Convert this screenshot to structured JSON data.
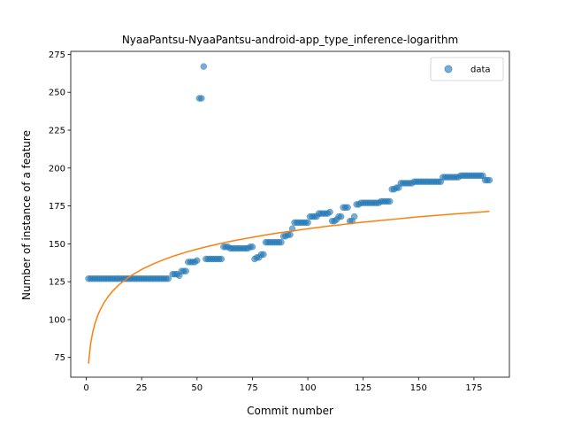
{
  "chart_data": {
    "type": "scatter",
    "title": "NyaaPantsu-NyaaPantsu-android-app_type_inference-logarithm",
    "xlabel": "Commit number",
    "ylabel": "Number of instance of a feature",
    "xlim": [
      -7,
      191
    ],
    "ylim": [
      62,
      277
    ],
    "xticks": [
      0,
      25,
      50,
      75,
      100,
      125,
      150,
      175
    ],
    "yticks": [
      75,
      100,
      125,
      150,
      175,
      200,
      225,
      250,
      275
    ],
    "legend": {
      "position": "top-right",
      "entries": [
        "data"
      ]
    },
    "grid": false,
    "series": [
      {
        "name": "data",
        "kind": "scatter",
        "color": "#1f77b4",
        "points": [
          [
            1,
            127
          ],
          [
            2,
            127
          ],
          [
            3,
            127
          ],
          [
            4,
            127
          ],
          [
            5,
            127
          ],
          [
            6,
            127
          ],
          [
            7,
            127
          ],
          [
            8,
            127
          ],
          [
            9,
            127
          ],
          [
            10,
            127
          ],
          [
            11,
            127
          ],
          [
            12,
            127
          ],
          [
            13,
            127
          ],
          [
            14,
            127
          ],
          [
            15,
            127
          ],
          [
            16,
            127
          ],
          [
            17,
            127
          ],
          [
            18,
            127
          ],
          [
            19,
            127
          ],
          [
            20,
            127
          ],
          [
            21,
            127
          ],
          [
            22,
            127
          ],
          [
            23,
            127
          ],
          [
            24,
            127
          ],
          [
            25,
            127
          ],
          [
            26,
            127
          ],
          [
            27,
            127
          ],
          [
            28,
            127
          ],
          [
            29,
            127
          ],
          [
            30,
            127
          ],
          [
            31,
            127
          ],
          [
            32,
            127
          ],
          [
            33,
            127
          ],
          [
            34,
            127
          ],
          [
            35,
            127
          ],
          [
            36,
            127
          ],
          [
            37,
            127
          ],
          [
            39,
            130
          ],
          [
            40,
            130
          ],
          [
            41,
            130
          ],
          [
            42,
            129
          ],
          [
            43,
            132
          ],
          [
            44,
            132
          ],
          [
            45,
            132
          ],
          [
            46,
            138
          ],
          [
            47,
            138
          ],
          [
            48,
            138
          ],
          [
            49,
            138
          ],
          [
            50,
            139
          ],
          [
            51,
            246
          ],
          [
            52,
            246
          ],
          [
            53,
            267
          ],
          [
            54,
            140
          ],
          [
            55,
            140
          ],
          [
            56,
            140
          ],
          [
            57,
            140
          ],
          [
            58,
            140
          ],
          [
            59,
            140
          ],
          [
            60,
            140
          ],
          [
            61,
            140
          ],
          [
            62,
            148
          ],
          [
            63,
            148
          ],
          [
            64,
            148
          ],
          [
            65,
            147
          ],
          [
            66,
            147
          ],
          [
            67,
            147
          ],
          [
            68,
            147
          ],
          [
            69,
            147
          ],
          [
            70,
            147
          ],
          [
            71,
            147
          ],
          [
            72,
            147
          ],
          [
            73,
            147
          ],
          [
            74,
            148
          ],
          [
            75,
            148
          ],
          [
            76,
            140
          ],
          [
            77,
            141
          ],
          [
            78,
            141
          ],
          [
            79,
            143
          ],
          [
            80,
            143
          ],
          [
            81,
            151
          ],
          [
            82,
            151
          ],
          [
            83,
            151
          ],
          [
            84,
            151
          ],
          [
            85,
            151
          ],
          [
            86,
            151
          ],
          [
            87,
            151
          ],
          [
            88,
            151
          ],
          [
            89,
            155
          ],
          [
            90,
            155
          ],
          [
            91,
            156
          ],
          [
            92,
            156
          ],
          [
            93,
            160
          ],
          [
            94,
            164
          ],
          [
            95,
            164
          ],
          [
            96,
            164
          ],
          [
            97,
            164
          ],
          [
            98,
            164
          ],
          [
            99,
            164
          ],
          [
            100,
            164
          ],
          [
            101,
            168
          ],
          [
            102,
            168
          ],
          [
            103,
            168
          ],
          [
            104,
            168
          ],
          [
            105,
            170
          ],
          [
            106,
            170
          ],
          [
            107,
            170
          ],
          [
            108,
            170
          ],
          [
            109,
            170
          ],
          [
            110,
            171
          ],
          [
            111,
            165
          ],
          [
            112,
            165
          ],
          [
            113,
            166
          ],
          [
            114,
            168
          ],
          [
            115,
            168
          ],
          [
            116,
            174
          ],
          [
            117,
            174
          ],
          [
            118,
            174
          ],
          [
            119,
            165
          ],
          [
            120,
            165
          ],
          [
            121,
            168
          ],
          [
            122,
            176
          ],
          [
            123,
            176
          ],
          [
            124,
            177
          ],
          [
            125,
            177
          ],
          [
            126,
            177
          ],
          [
            127,
            177
          ],
          [
            128,
            177
          ],
          [
            129,
            177
          ],
          [
            130,
            177
          ],
          [
            131,
            177
          ],
          [
            132,
            177
          ],
          [
            133,
            178
          ],
          [
            134,
            178
          ],
          [
            135,
            178
          ],
          [
            136,
            178
          ],
          [
            137,
            178
          ],
          [
            138,
            186
          ],
          [
            139,
            186
          ],
          [
            140,
            187
          ],
          [
            141,
            187
          ],
          [
            142,
            190
          ],
          [
            143,
            190
          ],
          [
            144,
            190
          ],
          [
            145,
            190
          ],
          [
            146,
            190
          ],
          [
            147,
            190
          ],
          [
            148,
            191
          ],
          [
            149,
            191
          ],
          [
            150,
            191
          ],
          [
            151,
            191
          ],
          [
            152,
            191
          ],
          [
            153,
            191
          ],
          [
            154,
            191
          ],
          [
            155,
            191
          ],
          [
            156,
            191
          ],
          [
            157,
            191
          ],
          [
            158,
            191
          ],
          [
            159,
            191
          ],
          [
            160,
            191
          ],
          [
            161,
            194
          ],
          [
            162,
            194
          ],
          [
            163,
            194
          ],
          [
            164,
            194
          ],
          [
            165,
            194
          ],
          [
            166,
            194
          ],
          [
            167,
            194
          ],
          [
            168,
            194
          ],
          [
            169,
            195
          ],
          [
            170,
            195
          ],
          [
            171,
            195
          ],
          [
            172,
            195
          ],
          [
            173,
            195
          ],
          [
            174,
            195
          ],
          [
            175,
            195
          ],
          [
            176,
            195
          ],
          [
            177,
            195
          ],
          [
            178,
            195
          ],
          [
            179,
            195
          ],
          [
            180,
            192
          ],
          [
            181,
            192
          ],
          [
            182,
            192
          ]
        ]
      },
      {
        "kind": "line",
        "color": "#ff7f0e",
        "points": [
          [
            1,
            71
          ],
          [
            2,
            84.4
          ],
          [
            3,
            92.2
          ],
          [
            4,
            97.7
          ],
          [
            5,
            102
          ],
          [
            6,
            105.6
          ],
          [
            8,
            111.1
          ],
          [
            10,
            115.4
          ],
          [
            12,
            119
          ],
          [
            15,
            123.3
          ],
          [
            20,
            128.8
          ],
          [
            25,
            133.1
          ],
          [
            30,
            136.6
          ],
          [
            35,
            139.6
          ],
          [
            40,
            142.2
          ],
          [
            45,
            144.5
          ],
          [
            50,
            146.5
          ],
          [
            55,
            148.3
          ],
          [
            60,
            150
          ],
          [
            65,
            151.6
          ],
          [
            70,
            153
          ],
          [
            75,
            154.3
          ],
          [
            80,
            155.6
          ],
          [
            85,
            156.8
          ],
          [
            90,
            157.9
          ],
          [
            95,
            158.9
          ],
          [
            100,
            159.9
          ],
          [
            105,
            160.9
          ],
          [
            110,
            161.8
          ],
          [
            115,
            162.6
          ],
          [
            120,
            163.5
          ],
          [
            125,
            164.3
          ],
          [
            130,
            165
          ],
          [
            135,
            165.7
          ],
          [
            140,
            166.4
          ],
          [
            145,
            167.1
          ],
          [
            150,
            167.8
          ],
          [
            155,
            168.4
          ],
          [
            160,
            169
          ],
          [
            165,
            169.6
          ],
          [
            170,
            170.1
          ],
          [
            175,
            170.7
          ],
          [
            180,
            171.2
          ],
          [
            182,
            171.5
          ]
        ]
      }
    ]
  }
}
